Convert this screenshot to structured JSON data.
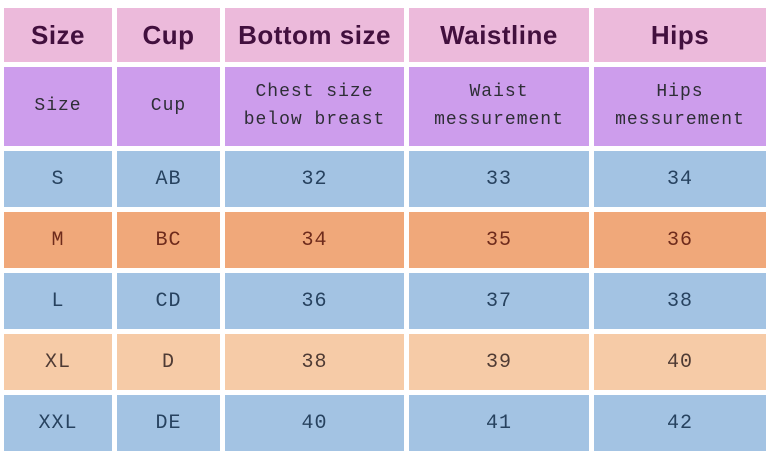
{
  "page_bg": "#ffffff",
  "colors": {
    "page_bg": "#ffffff",
    "header_bg": "#ecbadb",
    "header_text": "#42103e",
    "subheader_bg": "#cd9dec",
    "subheader_text": "#2e2e36",
    "blue_bg": "#a3c3e3",
    "blue_text": "#27425f",
    "orange_bg": "#f0a87a",
    "orange_text": "#6e2b1c",
    "peach_bg": "#f6cba7",
    "peach_text": "#4f3b34"
  },
  "chart_data": {
    "type": "table",
    "header": {
      "cells": [
        "Size",
        "Cup",
        "Bottom size",
        "Waistline",
        "Hips"
      ]
    },
    "subheader": {
      "cells": [
        "Size",
        "Cup",
        "Chest size\nbelow breast",
        "Waist\nmessurement",
        "Hips\nmessurement"
      ]
    },
    "rows": [
      {
        "variant": "blue",
        "cells": [
          "S",
          "AB",
          "32",
          "33",
          "34"
        ]
      },
      {
        "variant": "orange",
        "cells": [
          "M",
          "BC",
          "34",
          "35",
          "36"
        ]
      },
      {
        "variant": "blue",
        "cells": [
          "L",
          "CD",
          "36",
          "37",
          "38"
        ]
      },
      {
        "variant": "peach",
        "cells": [
          "XL",
          "D",
          "38",
          "39",
          "40"
        ]
      },
      {
        "variant": "blue",
        "cells": [
          "XXL",
          "DE",
          "40",
          "41",
          "42"
        ]
      }
    ]
  }
}
